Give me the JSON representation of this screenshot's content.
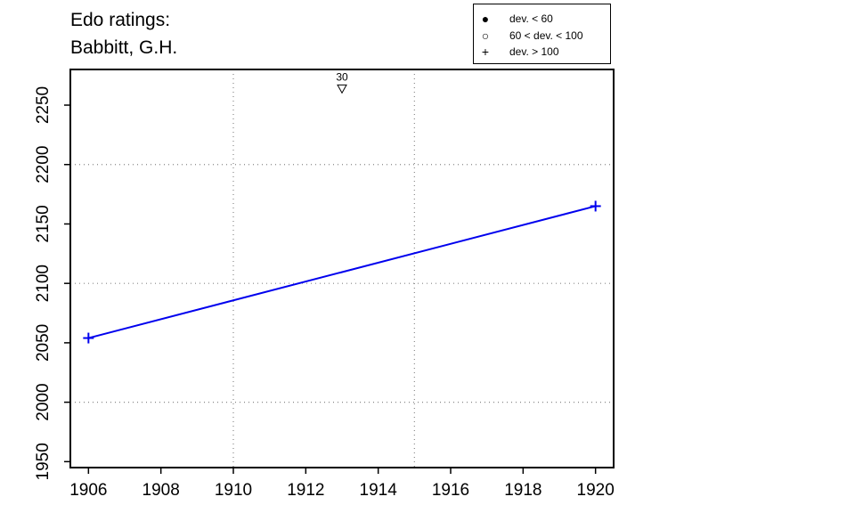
{
  "title_lines": [
    "Edo ratings:",
    "Babbitt, G.H."
  ],
  "legend": {
    "items": [
      {
        "symbol": "filled-circle",
        "label": "dev. < 60"
      },
      {
        "symbol": "open-circle",
        "label": "60 < dev. < 100"
      },
      {
        "symbol": "plus",
        "label": "dev. > 100"
      }
    ]
  },
  "chart_data": {
    "type": "line",
    "title": "Edo ratings: Babbitt, G.H.",
    "xlabel": "",
    "ylabel": "",
    "xlim": [
      1905.5,
      1920.5
    ],
    "ylim": [
      1945,
      2280
    ],
    "x_ticks": [
      1906,
      1908,
      1910,
      1912,
      1914,
      1916,
      1918,
      1920
    ],
    "y_ticks": [
      1950,
      2000,
      2050,
      2100,
      2150,
      2200,
      2250
    ],
    "grid_x": [
      1910,
      1915
    ],
    "grid_y": [
      2000,
      2100,
      2200
    ],
    "grid": true,
    "legend_position": "top-right",
    "series": [
      {
        "color": "#0000ee",
        "marker": "plus",
        "points": [
          {
            "x": 1906,
            "y": 2054
          },
          {
            "x": 1920,
            "y": 2165
          }
        ]
      }
    ],
    "annotations": [
      {
        "x": 1913,
        "y": 2264,
        "marker": "open-triangle-down",
        "label": "30"
      }
    ]
  }
}
